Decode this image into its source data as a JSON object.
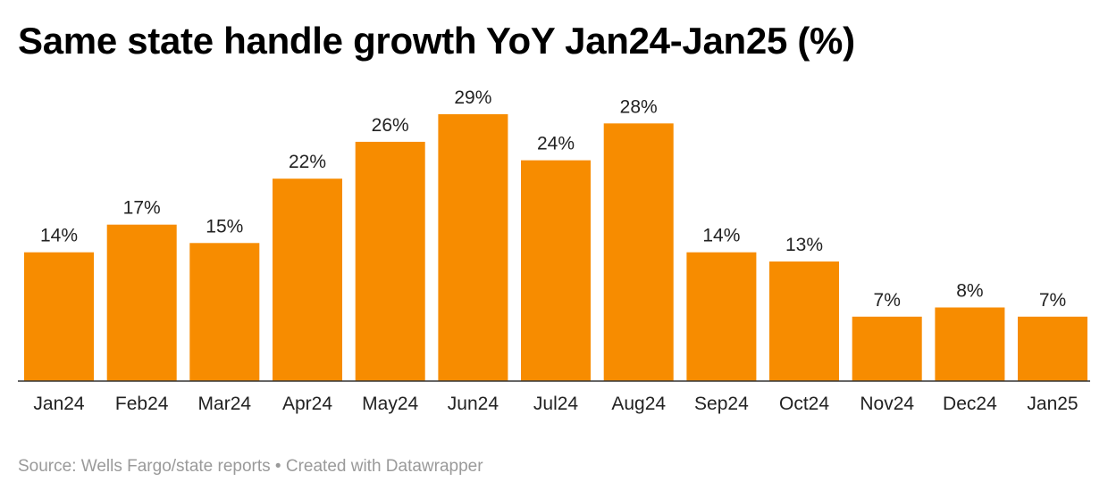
{
  "chart_data": {
    "type": "bar",
    "title": "Same state handle growth YoY Jan24-Jan25 (%)",
    "xlabel": "",
    "ylabel": "",
    "categories": [
      "Jan24",
      "Feb24",
      "Mar24",
      "Apr24",
      "May24",
      "Jun24",
      "Jul24",
      "Aug24",
      "Sep24",
      "Oct24",
      "Nov24",
      "Dec24",
      "Jan25"
    ],
    "values": [
      14,
      17,
      15,
      22,
      26,
      29,
      24,
      28,
      14,
      13,
      7,
      8,
      7
    ],
    "value_labels": [
      "14%",
      "17%",
      "15%",
      "22%",
      "26%",
      "29%",
      "24%",
      "28%",
      "14%",
      "13%",
      "7%",
      "8%",
      "7%"
    ],
    "ylim": [
      0,
      29
    ],
    "grid": false,
    "legend": "none",
    "bar_color": "#f78c00"
  },
  "footer": {
    "source": "Source: Wells Fargo/state reports • Created with Datawrapper"
  }
}
